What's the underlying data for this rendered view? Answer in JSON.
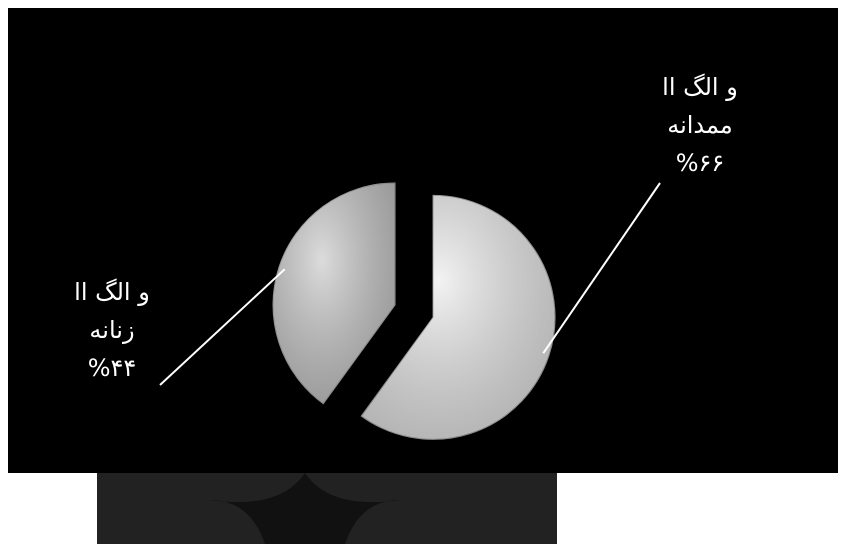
{
  "chart_data": {
    "type": "pie",
    "categories": [
      [
        "و الگ اا",
        "ممدانه"
      ],
      [
        "و الگ اا",
        "زنانه"
      ]
    ],
    "values": [
      66,
      44
    ],
    "value_labels": [
      "%۶۶",
      "%۴۴"
    ],
    "colors": [
      "#ececec",
      "#c9c9c9"
    ],
    "explode": [
      true,
      false
    ]
  }
}
